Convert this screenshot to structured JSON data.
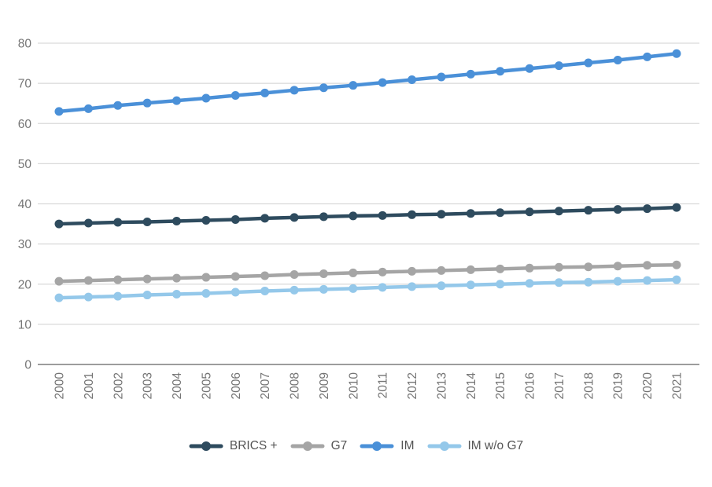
{
  "chart_data": {
    "type": "line",
    "title": "",
    "xlabel": "",
    "ylabel": "",
    "categories": [
      "2000",
      "2001",
      "2002",
      "2003",
      "2004",
      "2005",
      "2006",
      "2007",
      "2008",
      "2009",
      "2010",
      "2011",
      "2012",
      "2013",
      "2014",
      "2015",
      "2016",
      "2017",
      "2018",
      "2019",
      "2020",
      "2021"
    ],
    "series": [
      {
        "name": "BRICS +",
        "color": "#2e4b5e",
        "values": [
          35.0,
          35.2,
          35.4,
          35.5,
          35.7,
          35.9,
          36.1,
          36.4,
          36.6,
          36.8,
          37.0,
          37.1,
          37.3,
          37.4,
          37.6,
          37.8,
          38.0,
          38.2,
          38.4,
          38.6,
          38.8,
          39.1
        ]
      },
      {
        "name": "G7",
        "color": "#a5a5a5",
        "values": [
          20.7,
          20.9,
          21.1,
          21.3,
          21.5,
          21.7,
          21.9,
          22.1,
          22.4,
          22.6,
          22.8,
          23.0,
          23.2,
          23.4,
          23.6,
          23.8,
          24.0,
          24.2,
          24.3,
          24.5,
          24.7,
          24.8
        ]
      },
      {
        "name": "IM",
        "color": "#4a90d8",
        "values": [
          63.0,
          63.7,
          64.5,
          65.1,
          65.7,
          66.3,
          67.0,
          67.6,
          68.3,
          68.9,
          69.5,
          70.2,
          70.9,
          71.6,
          72.3,
          73.0,
          73.7,
          74.4,
          75.1,
          75.8,
          76.6,
          77.4
        ]
      },
      {
        "name": "IM w/o G7",
        "color": "#94c8ea",
        "values": [
          16.6,
          16.8,
          17.0,
          17.3,
          17.5,
          17.7,
          18.0,
          18.3,
          18.5,
          18.7,
          18.9,
          19.2,
          19.4,
          19.6,
          19.8,
          20.0,
          20.2,
          20.4,
          20.5,
          20.7,
          20.9,
          21.1
        ]
      }
    ],
    "ylim": [
      0,
      80
    ],
    "yticks": [
      0,
      10,
      20,
      30,
      40,
      50,
      60,
      70,
      80
    ],
    "grid": true,
    "legend_position": "bottom",
    "colors": {
      "gridline": "#d9d9d9",
      "zero_line": "#9c9c9c",
      "axis_text": "#757575",
      "legend_text": "#555555",
      "background": "#ffffff"
    }
  }
}
